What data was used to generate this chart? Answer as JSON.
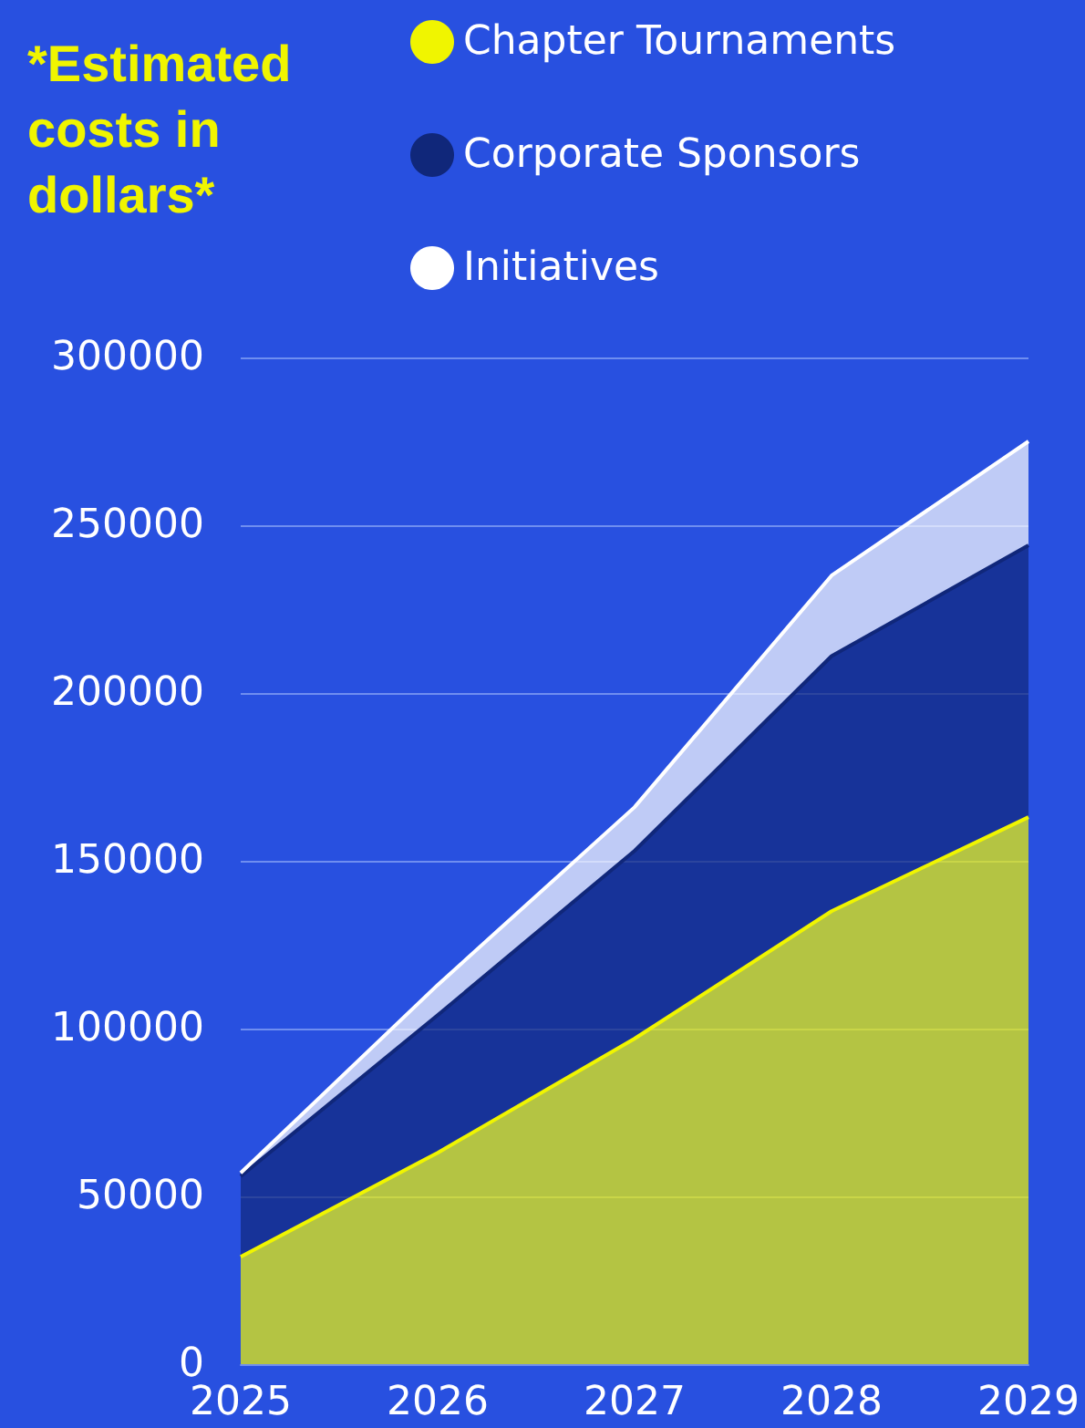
{
  "chart_data": {
    "type": "area",
    "title": "*Estimated costs in dollars*",
    "stacked": true,
    "categories": [
      "2025",
      "2026",
      "2027",
      "2028",
      "2029"
    ],
    "series": [
      {
        "name": "Chapter Tournaments",
        "color": "#f0f500",
        "values": [
          32000,
          63000,
          97000,
          135000,
          163000
        ]
      },
      {
        "name": "Corporate Sponsors",
        "color": "#10277a",
        "values": [
          24000,
          41000,
          56000,
          76000,
          81000
        ]
      },
      {
        "name": "Initiatives",
        "color": "#ffffff",
        "values": [
          1000,
          9000,
          13000,
          24000,
          31000
        ]
      }
    ],
    "ylim": [
      0,
      300000
    ],
    "yticks": [
      0,
      50000,
      100000,
      150000,
      200000,
      250000,
      300000
    ],
    "grid": "y",
    "legend": "top",
    "marker": "none"
  }
}
